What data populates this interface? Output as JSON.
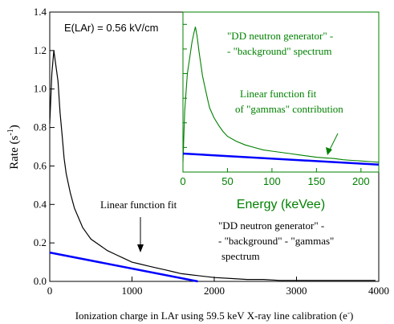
{
  "chart_data": [
    {
      "type": "line",
      "xlabel": "Ionization charge in LAr using 59.5 keV X-ray line calibration (e",
      "xlabel_sup": "-",
      "xlabel_close": ")",
      "ylabel": "Rate (s",
      "ylabel_sup": "-1",
      "ylabel_close": ")",
      "xlim": [
        0,
        4000
      ],
      "ylim": [
        0,
        1.4
      ],
      "xticks": [
        "0",
        "1000",
        "2000",
        "3000",
        "4000"
      ],
      "yticks": [
        "0.0",
        "0.2",
        "0.4",
        "0.6",
        "0.8",
        "1.0",
        "1.2",
        "1.4"
      ],
      "annotations": {
        "field": "E(LAr) = 0.56 kV/cm",
        "linear_fit": "Linear function fit",
        "spectrum_line1": "\"DD neutron generator\" -",
        "spectrum_line2": "- \"background\" - \"gammas\"",
        "spectrum_line3": "spectrum"
      },
      "series": [
        {
          "color": "#000000",
          "x": [
            0,
            25,
            50,
            75,
            100,
            125,
            150,
            175,
            200,
            250,
            300,
            350,
            400,
            450,
            500,
            600,
            700,
            800,
            900,
            1000,
            1100,
            1200,
            1300,
            1400,
            1500,
            1600,
            1700,
            1800,
            2000,
            2200,
            2400,
            2600,
            2800,
            3000,
            3200,
            3400,
            3600,
            3800,
            3960
          ],
          "y": [
            0.82,
            1.08,
            1.2,
            1.12,
            1.04,
            0.88,
            0.76,
            0.64,
            0.56,
            0.46,
            0.38,
            0.33,
            0.28,
            0.25,
            0.22,
            0.19,
            0.16,
            0.14,
            0.12,
            0.1,
            0.09,
            0.08,
            0.07,
            0.06,
            0.05,
            0.04,
            0.035,
            0.03,
            0.02,
            0.015,
            0.01,
            0.01,
            0.005,
            0.005,
            0.005,
            0.005,
            0.005,
            0.005,
            0.005
          ]
        },
        {
          "color": "#0000ff",
          "x": [
            0,
            1800
          ],
          "y": [
            0.15,
            0.0
          ]
        }
      ]
    },
    {
      "type": "line",
      "xlabel": "Energy (keVee)",
      "xlim": [
        0,
        220
      ],
      "xticks": [
        "0",
        "50",
        "100",
        "150",
        "200"
      ],
      "annotations": {
        "spectrum_line1": "\"DD neutron generator\" -",
        "spectrum_line2": "- \"background\" spectrum",
        "fit_line1": "Linear function fit",
        "fit_line2": "of \"gammas\" contribution"
      },
      "series": [
        {
          "color": "#008000",
          "x": [
            0,
            2,
            5,
            8,
            10,
            12,
            14,
            16,
            18,
            20,
            22,
            25,
            28,
            30,
            35,
            40,
            45,
            50,
            60,
            70,
            80,
            90,
            100,
            110,
            120,
            130,
            140,
            150,
            160,
            170,
            180,
            190,
            200,
            210,
            220
          ],
          "y": [
            0.08,
            0.5,
            0.8,
            0.95,
            1.05,
            1.12,
            1.18,
            1.1,
            0.98,
            0.88,
            0.78,
            0.68,
            0.58,
            0.52,
            0.44,
            0.38,
            0.33,
            0.29,
            0.25,
            0.22,
            0.2,
            0.18,
            0.17,
            0.16,
            0.15,
            0.14,
            0.13,
            0.12,
            0.115,
            0.11,
            0.1,
            0.095,
            0.09,
            0.085,
            0.08
          ]
        },
        {
          "color": "#0000ff",
          "x": [
            0,
            220
          ],
          "y": [
            0.15,
            0.06
          ]
        }
      ]
    }
  ]
}
